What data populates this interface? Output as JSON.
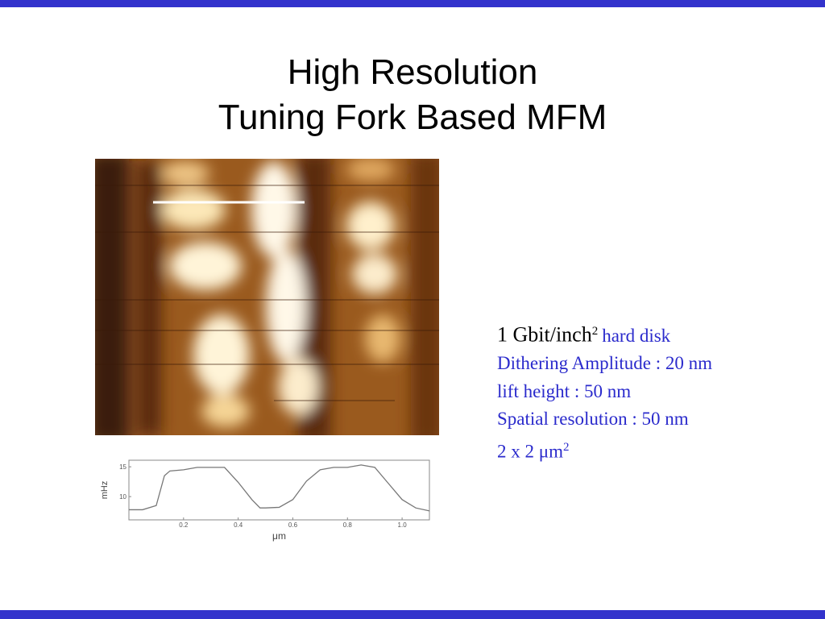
{
  "slide": {
    "title_lines": [
      "High Resolution",
      "Tuning Fork Based MFM"
    ],
    "first_line": {
      "text": "1 Gbit/inch",
      "sup": "2",
      "suffix": "hard disk"
    },
    "lines": [
      "Dithering Amplitude : 20 nm",
      "lift height : 50 nm",
      "Spatial resolution : 50 nm"
    ],
    "last_line": {
      "text": "2 x 2 μm",
      "sup": "2"
    }
  },
  "chart_data": {
    "type": "line",
    "x_label": "μm",
    "y_label": "mHz",
    "x": [
      0,
      0.05,
      0.1,
      0.13,
      0.15,
      0.2,
      0.25,
      0.3,
      0.35,
      0.4,
      0.45,
      0.48,
      0.5,
      0.55,
      0.6,
      0.65,
      0.7,
      0.75,
      0.8,
      0.85,
      0.9,
      0.95,
      1.0,
      1.05,
      1.1
    ],
    "values": [
      7.8,
      7.8,
      8.5,
      13.5,
      14.3,
      14.5,
      14.9,
      14.9,
      14.9,
      12.4,
      9.5,
      8.1,
      8.1,
      8.2,
      9.5,
      12.6,
      14.5,
      14.9,
      14.9,
      15.3,
      14.9,
      12.2,
      9.5,
      8.1,
      7.6
    ],
    "color": "#777777",
    "xlim": [
      0,
      1.1
    ],
    "ylim": [
      6.1,
      16.1
    ],
    "xticks": [
      0.2,
      0.4,
      0.6,
      0.8,
      {
        "value": 1,
        "label": "1.0"
      }
    ],
    "yticks": [
      10,
      15
    ]
  }
}
